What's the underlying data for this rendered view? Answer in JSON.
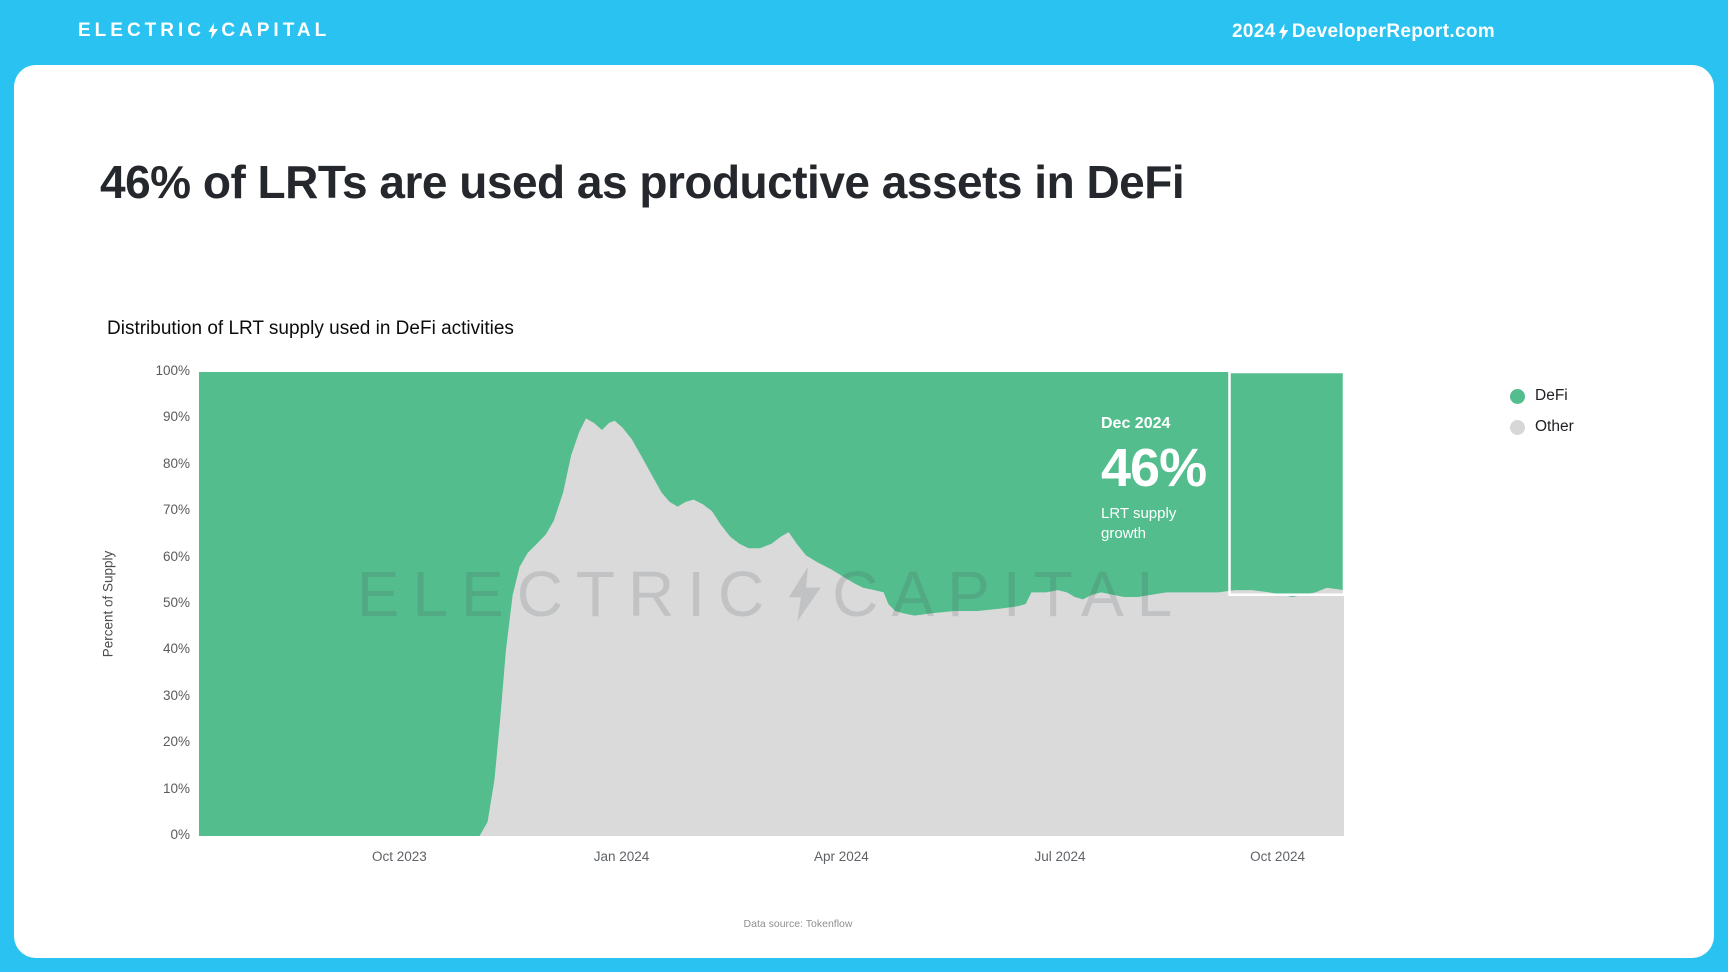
{
  "header": {
    "logo_left": "ELECTRIC",
    "logo_right": "CAPITAL",
    "year": "2024",
    "site": "DeveloperReport.com"
  },
  "page": {
    "title": "46% of LRTs are used as productive assets in DeFi"
  },
  "annotation": {
    "date": "Dec 2024",
    "value": "46%",
    "caption": "LRT supply growth"
  },
  "watermark": {
    "left": "ELECTRIC",
    "right": "CAPITAL"
  },
  "footer": {
    "source": "Data source: Tokenflow"
  },
  "colors": {
    "background_cyan": "#29C2F1",
    "card_white": "#FFFFFF",
    "defi_green": "#53BD8D",
    "other_gray": "#DADADA",
    "title_text": "#24272C",
    "annotation_text": "#FFFFFF",
    "highlight_box_border": "#FFFFFF"
  },
  "chart_data": {
    "type": "area",
    "stacked_percent": true,
    "title": "Distribution of LRT supply used in DeFi activities",
    "xlabel": "",
    "ylabel": "Percent of Supply",
    "ylim": [
      0,
      100
    ],
    "grid": false,
    "legend_position": "right",
    "y_ticks": [
      0,
      10,
      20,
      30,
      40,
      50,
      60,
      70,
      80,
      90,
      100
    ],
    "x_ticks": [
      {
        "label": "Oct 2023",
        "pos": 0.175
      },
      {
        "label": "Jan 2024",
        "pos": 0.369
      },
      {
        "label": "Apr 2024",
        "pos": 0.561
      },
      {
        "label": "Jul 2024",
        "pos": 0.752
      },
      {
        "label": "Oct 2024",
        "pos": 0.942
      }
    ],
    "legend": [
      {
        "label": "DeFi",
        "color": "#53BD8D"
      },
      {
        "label": "Other",
        "color": "#D7D7D7"
      }
    ],
    "note": "100% stacked area from mid-2023 to Dec 2024. Gray 'Other' fills from 0% up to other_share; green 'DeFi' fills the remainder to 100% (DeFi share = 100 - other_share). x is fractional position across the plot.",
    "other_share": [
      [
        0.0,
        0
      ],
      [
        0.23,
        0
      ],
      [
        0.245,
        0
      ],
      [
        0.252,
        3
      ],
      [
        0.258,
        12
      ],
      [
        0.263,
        25
      ],
      [
        0.268,
        40
      ],
      [
        0.274,
        52
      ],
      [
        0.28,
        58
      ],
      [
        0.287,
        61
      ],
      [
        0.295,
        63
      ],
      [
        0.303,
        65
      ],
      [
        0.31,
        68
      ],
      [
        0.318,
        74
      ],
      [
        0.325,
        82
      ],
      [
        0.332,
        87
      ],
      [
        0.338,
        90
      ],
      [
        0.345,
        89
      ],
      [
        0.352,
        87.5
      ],
      [
        0.358,
        89
      ],
      [
        0.363,
        89.5
      ],
      [
        0.37,
        88
      ],
      [
        0.378,
        85.5
      ],
      [
        0.386,
        82
      ],
      [
        0.395,
        78
      ],
      [
        0.404,
        74
      ],
      [
        0.411,
        72
      ],
      [
        0.418,
        71
      ],
      [
        0.425,
        72
      ],
      [
        0.432,
        72.5
      ],
      [
        0.44,
        71.5
      ],
      [
        0.448,
        70
      ],
      [
        0.456,
        67
      ],
      [
        0.464,
        64.5
      ],
      [
        0.472,
        63
      ],
      [
        0.48,
        62
      ],
      [
        0.49,
        62
      ],
      [
        0.5,
        63
      ],
      [
        0.508,
        64.5
      ],
      [
        0.515,
        65.5
      ],
      [
        0.522,
        63
      ],
      [
        0.53,
        60.5
      ],
      [
        0.54,
        59
      ],
      [
        0.552,
        57.5
      ],
      [
        0.562,
        56
      ],
      [
        0.572,
        54.5
      ],
      [
        0.58,
        53.5
      ],
      [
        0.59,
        53
      ],
      [
        0.598,
        52.5
      ],
      [
        0.602,
        50
      ],
      [
        0.608,
        48.5
      ],
      [
        0.615,
        48
      ],
      [
        0.625,
        47.5
      ],
      [
        0.64,
        48
      ],
      [
        0.66,
        48.5
      ],
      [
        0.68,
        48.5
      ],
      [
        0.7,
        49
      ],
      [
        0.715,
        49.5
      ],
      [
        0.722,
        50
      ],
      [
        0.727,
        52.5
      ],
      [
        0.74,
        52.5
      ],
      [
        0.75,
        53
      ],
      [
        0.758,
        52.5
      ],
      [
        0.765,
        51.5
      ],
      [
        0.772,
        51
      ],
      [
        0.78,
        52
      ],
      [
        0.788,
        52.5
      ],
      [
        0.798,
        52
      ],
      [
        0.808,
        51.5
      ],
      [
        0.82,
        51.5
      ],
      [
        0.832,
        52
      ],
      [
        0.845,
        52.5
      ],
      [
        0.86,
        52.5
      ],
      [
        0.875,
        52.5
      ],
      [
        0.89,
        52.5
      ],
      [
        0.905,
        53
      ],
      [
        0.92,
        53
      ],
      [
        0.935,
        52.5
      ],
      [
        0.945,
        52
      ],
      [
        0.955,
        51.5
      ],
      [
        0.965,
        52
      ],
      [
        0.975,
        52.5
      ],
      [
        0.985,
        53.5
      ],
      [
        1.0,
        53
      ]
    ],
    "highlight_box": {
      "x0": 0.9,
      "x1": 1.0,
      "y_top": 100,
      "y_bottom": 52
    },
    "defi_share_dec_2024": 46
  }
}
